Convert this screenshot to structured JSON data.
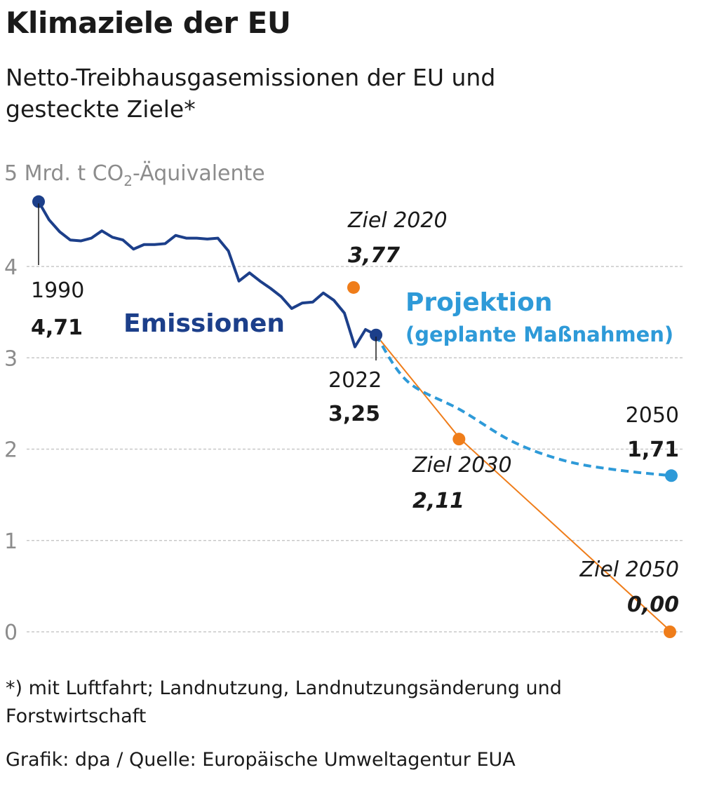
{
  "title": "Klimaziele der EU",
  "subtitle": "Netto-Treibhausgasemissionen der EU und gesteckte Ziele*",
  "footnote": "*) mit Luftfahrt; Landnutzung, Landnutzungsänderung und Forstwirtschaft",
  "source": "Grafik: dpa / Quelle: Europäische Umweltagentur EUA",
  "chart_data": {
    "type": "line",
    "ylabel_prefix": "5 Mrd. t CO",
    "ylabel_sub": "2",
    "ylabel_suffix": "-Äquivalente",
    "ylim": [
      0,
      5
    ],
    "xlim": [
      1990,
      2050
    ],
    "yticks": [
      "0",
      "1",
      "2",
      "3",
      "4"
    ],
    "grid": true,
    "colors": {
      "emissions": "#1c3f8a",
      "projection": "#2e9ad8",
      "targets": "#ef7d1a"
    },
    "series": [
      {
        "name": "Emissionen",
        "x": [
          1990,
          1991,
          1992,
          1993,
          1994,
          1995,
          1996,
          1997,
          1998,
          1999,
          2000,
          2001,
          2002,
          2003,
          2004,
          2005,
          2006,
          2007,
          2008,
          2009,
          2010,
          2011,
          2012,
          2013,
          2014,
          2015,
          2016,
          2017,
          2018,
          2019,
          2020,
          2021,
          2022
        ],
        "y": [
          4.71,
          4.51,
          4.38,
          4.29,
          4.28,
          4.31,
          4.39,
          4.32,
          4.29,
          4.19,
          4.24,
          4.24,
          4.25,
          4.34,
          4.31,
          4.31,
          4.3,
          4.31,
          4.17,
          3.84,
          3.93,
          3.84,
          3.76,
          3.67,
          3.54,
          3.6,
          3.61,
          3.71,
          3.63,
          3.49,
          3.12,
          3.31,
          3.25
        ]
      },
      {
        "name": "Projektion",
        "name_line2": "(geplante Maßnahmen)",
        "x": [
          2022,
          2025,
          2030,
          2035,
          2040,
          2045,
          2050
        ],
        "y": [
          3.25,
          2.74,
          2.43,
          2.08,
          1.87,
          1.77,
          1.71
        ]
      },
      {
        "name": "Ziele",
        "x": [
          2020,
          2030,
          2050
        ],
        "y": [
          3.77,
          2.11,
          0.0
        ]
      }
    ],
    "annotations": [
      {
        "line1": "1990",
        "line2": "4,71"
      },
      {
        "line1": "2022",
        "line2": "3,25"
      },
      {
        "line1": "Ziel 2020",
        "line2": "3,77"
      },
      {
        "line1": "Ziel 2030",
        "line2": "2,11"
      },
      {
        "line1": "2050",
        "line2": "1,71"
      },
      {
        "line1": "Ziel 2050",
        "line2": "0,00"
      }
    ]
  }
}
